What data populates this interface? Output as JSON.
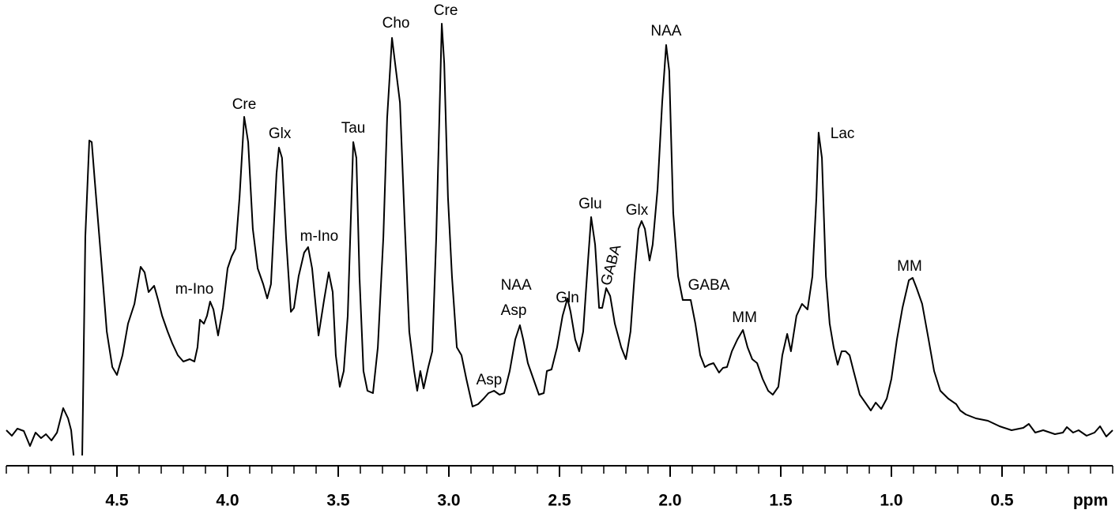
{
  "chart_data": {
    "type": "line",
    "x_label": "ppm",
    "color": "#000000",
    "xlim": [
      5,
      0
    ],
    "ylim": [
      0,
      575
    ],
    "xticks": [
      4.5,
      {
        "value": 4,
        "label": "4.0"
      },
      3.5,
      {
        "value": 3,
        "label": "3.0"
      },
      2.5,
      {
        "value": 2,
        "label": "2.0"
      },
      1.5,
      {
        "value": 1,
        "label": "1.0"
      },
      0.5
    ],
    "xminor_ticks": [
      5,
      4.9,
      4.8,
      4.7,
      4.6,
      4.5,
      4.4,
      4.3,
      4.2,
      4.1,
      4,
      3.9,
      3.8,
      3.7,
      3.6,
      3.5,
      3.4,
      3.3,
      3.2,
      3.1,
      3,
      2.9,
      2.8,
      2.7,
      2.6,
      2.5,
      2.4,
      2.3,
      2.2,
      2.1,
      2,
      1.9,
      1.8,
      1.7,
      1.6,
      1.5,
      1.4,
      1.3,
      1.2,
      1.1,
      1,
      0.9,
      0.8,
      0.7,
      0.6,
      0.5,
      0.4,
      0.3,
      0.2,
      0.1,
      0
    ],
    "x": [
      5.0,
      4.975,
      4.95,
      4.921,
      4.893,
      4.868,
      4.843,
      4.821,
      4.796,
      4.771,
      4.743,
      4.721,
      4.707,
      4.696,
      null,
      4.657,
      4.654,
      4.643,
      4.625,
      4.614,
      4.6,
      4.571,
      4.546,
      4.521,
      4.5,
      4.475,
      4.45,
      4.421,
      4.393,
      4.375,
      4.357,
      4.332,
      4.314,
      4.296,
      4.271,
      4.25,
      4.225,
      4.2,
      4.171,
      4.15,
      4.136,
      4.125,
      4.107,
      4.093,
      4.079,
      4.064,
      4.043,
      4.021,
      4.0,
      3.982,
      3.964,
      3.946,
      3.925,
      3.907,
      3.886,
      3.864,
      3.839,
      3.821,
      3.804,
      3.779,
      3.768,
      3.754,
      3.736,
      3.714,
      3.7,
      3.679,
      3.654,
      3.636,
      3.618,
      3.589,
      3.564,
      3.543,
      3.525,
      3.511,
      3.493,
      3.475,
      3.457,
      3.432,
      3.418,
      3.404,
      3.386,
      3.368,
      3.343,
      3.321,
      3.296,
      3.279,
      3.257,
      3.243,
      3.221,
      3.2,
      3.179,
      3.157,
      3.143,
      3.129,
      3.114,
      3.093,
      3.075,
      3.057,
      3.043,
      3.032,
      3.021,
      3.004,
      2.986,
      2.964,
      2.943,
      2.921,
      2.893,
      2.868,
      2.843,
      2.821,
      2.796,
      2.771,
      2.75,
      2.725,
      2.7,
      2.679,
      2.664,
      2.643,
      2.618,
      2.593,
      2.571,
      2.557,
      2.536,
      2.511,
      2.486,
      2.464,
      2.45,
      2.429,
      2.411,
      2.393,
      2.371,
      2.357,
      2.339,
      2.321,
      2.307,
      2.289,
      2.271,
      2.25,
      2.221,
      2.2,
      2.179,
      2.161,
      2.143,
      2.129,
      2.114,
      2.093,
      2.079,
      2.057,
      2.036,
      2.018,
      2.004,
      1.986,
      1.964,
      1.943,
      1.921,
      1.907,
      1.886,
      1.864,
      1.843,
      1.825,
      1.804,
      1.779,
      1.761,
      1.743,
      1.721,
      1.696,
      1.671,
      1.65,
      1.629,
      1.607,
      1.582,
      1.557,
      1.536,
      1.511,
      1.493,
      1.471,
      1.454,
      1.429,
      1.404,
      1.379,
      1.357,
      1.339,
      1.329,
      1.314,
      1.296,
      1.279,
      1.261,
      1.243,
      1.225,
      1.207,
      1.189,
      1.171,
      1.143,
      1.118,
      1.093,
      1.071,
      1.046,
      1.021,
      1.0,
      0.975,
      0.95,
      0.921,
      0.904,
      0.886,
      0.861,
      0.832,
      0.807,
      0.779,
      0.743,
      0.707,
      0.689,
      0.664,
      0.618,
      0.564,
      0.511,
      0.457,
      0.404,
      0.379,
      0.35,
      0.314,
      0.261,
      0.225,
      0.207,
      0.179,
      0.154,
      0.118,
      0.082,
      0.057,
      0.029,
      0.0
    ],
    "values": [
      35,
      28,
      37,
      34,
      15,
      32,
      25,
      30,
      22,
      32,
      63,
      50,
      35,
      3,
      null,
      3,
      60,
      280,
      402,
      400,
      350,
      250,
      160,
      115,
      105,
      130,
      170,
      195,
      242,
      235,
      210,
      218,
      200,
      180,
      160,
      145,
      130,
      122,
      125,
      122,
      140,
      175,
      170,
      180,
      198,
      188,
      155,
      190,
      240,
      255,
      265,
      330,
      432,
      400,
      290,
      240,
      220,
      202,
      220,
      360,
      393,
      380,
      280,
      185,
      190,
      230,
      260,
      267,
      240,
      155,
      200,
      235,
      210,
      130,
      90,
      110,
      180,
      400,
      380,
      230,
      110,
      85,
      82,
      140,
      280,
      430,
      532,
      500,
      450,
      300,
      160,
      110,
      85,
      110,
      88,
      115,
      135,
      280,
      430,
      550,
      500,
      330,
      230,
      140,
      130,
      100,
      65,
      68,
      75,
      82,
      85,
      80,
      82,
      110,
      150,
      168,
      150,
      120,
      100,
      80,
      82,
      110,
      112,
      140,
      180,
      202,
      185,
      150,
      135,
      160,
      250,
      305,
      270,
      190,
      190,
      215,
      205,
      170,
      140,
      125,
      160,
      230,
      290,
      300,
      290,
      250,
      270,
      340,
      450,
      523,
      490,
      310,
      230,
      200,
      200,
      200,
      170,
      130,
      115,
      118,
      120,
      108,
      114,
      115,
      135,
      150,
      162,
      140,
      125,
      120,
      100,
      85,
      80,
      90,
      130,
      157,
      135,
      180,
      195,
      188,
      230,
      330,
      412,
      380,
      230,
      170,
      140,
      118,
      135,
      135,
      130,
      110,
      80,
      70,
      60,
      70,
      62,
      75,
      100,
      150,
      190,
      225,
      228,
      215,
      195,
      150,
      110,
      85,
      75,
      68,
      60,
      55,
      50,
      47,
      40,
      35,
      38,
      43,
      32,
      35,
      30,
      32,
      39,
      32,
      35,
      28,
      32,
      40,
      27,
      35
    ],
    "annotations": [
      {
        "text": "m-Ino",
        "x": 4.15,
        "y": 213
      },
      {
        "text": "Cre",
        "x": 3.925,
        "y": 447
      },
      {
        "text": "Glx",
        "x": 3.764,
        "y": 410
      },
      {
        "text": "m-Ino",
        "x": 3.586,
        "y": 280
      },
      {
        "text": "Tau",
        "x": 3.432,
        "y": 417
      },
      {
        "text": "Cho",
        "x": 3.239,
        "y": 550
      },
      {
        "text": "Cre",
        "x": 3.014,
        "y": 566
      },
      {
        "text": "NAA",
        "x": 2.696,
        "y": 218
      },
      {
        "text": "Asp",
        "x": 2.707,
        "y": 186
      },
      {
        "text": "Asp",
        "x": 2.818,
        "y": 98
      },
      {
        "text": "Gln",
        "x": 2.464,
        "y": 202
      },
      {
        "text": "Glu",
        "x": 2.361,
        "y": 321
      },
      {
        "text": "GABA",
        "x": 2.264,
        "y": 244,
        "rotate": -75
      },
      {
        "text": "Glx",
        "x": 2.15,
        "y": 313
      },
      {
        "text": "NAA",
        "x": 2.018,
        "y": 540
      },
      {
        "text": "GABA",
        "x": 1.825,
        "y": 218
      },
      {
        "text": "MM",
        "x": 1.664,
        "y": 177
      },
      {
        "text": "Lac",
        "x": 1.221,
        "y": 410
      },
      {
        "text": "MM",
        "x": 0.918,
        "y": 242
      }
    ]
  }
}
